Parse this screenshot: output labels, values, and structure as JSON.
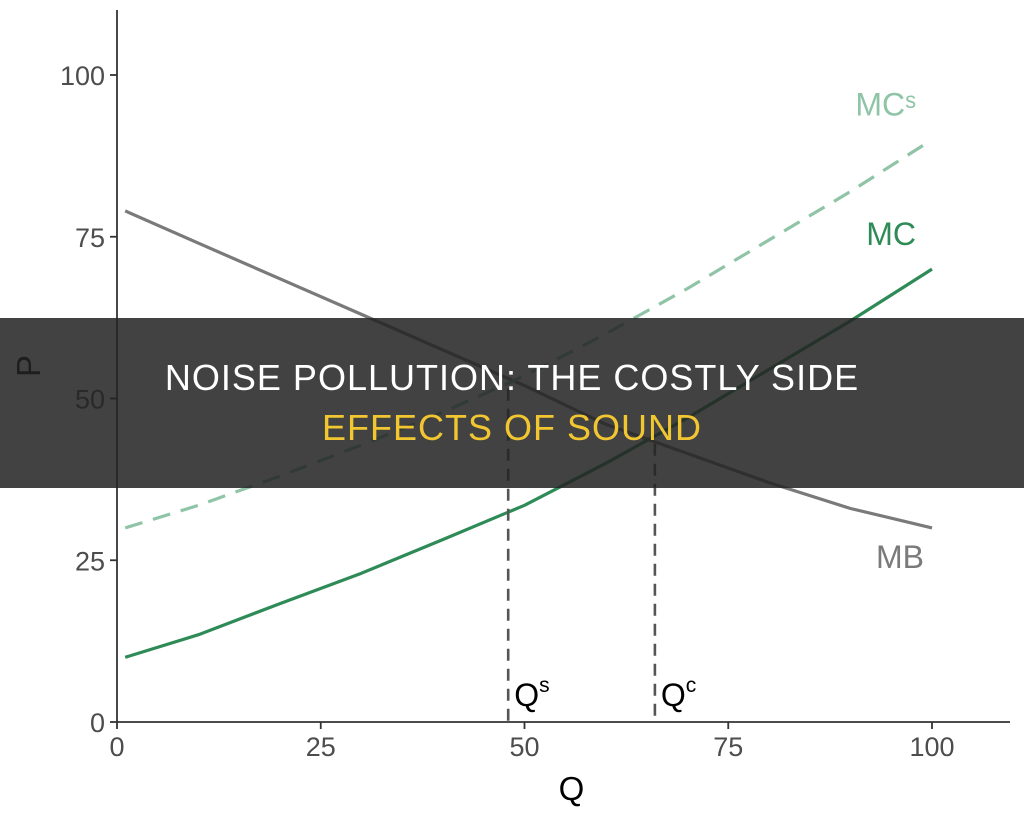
{
  "chart_data": {
    "type": "line",
    "xlabel": "Q",
    "ylabel": "P",
    "xlim": [
      0,
      110
    ],
    "ylim": [
      0,
      110
    ],
    "xticks": [
      0,
      25,
      50,
      75,
      100
    ],
    "yticks": [
      0,
      25,
      50,
      75,
      100
    ],
    "grid": false,
    "series": [
      {
        "name": "MB",
        "color": "#7a7a7a",
        "dash": "solid",
        "x": [
          1,
          10,
          20,
          30,
          40,
          50,
          60,
          70,
          80,
          90,
          100
        ],
        "y": [
          79,
          74,
          68.5,
          63,
          57.5,
          52,
          46,
          41.5,
          37,
          33,
          30
        ]
      },
      {
        "name": "MC",
        "color": "#2e8b57",
        "dash": "solid",
        "x": [
          1,
          10,
          20,
          30,
          40,
          50,
          60,
          70,
          80,
          90,
          100
        ],
        "y": [
          10,
          13.5,
          18.3,
          23,
          28.2,
          33.5,
          40,
          47,
          54.5,
          62,
          70
        ]
      },
      {
        "name": "MCˢ",
        "color": "#8fc4a6",
        "dash": "dashed",
        "x": [
          1,
          10,
          20,
          30,
          40,
          50,
          60,
          70,
          80,
          90,
          100
        ],
        "y": [
          30,
          33.5,
          38,
          42.8,
          47.9,
          53.5,
          60,
          67,
          74.5,
          82,
          90
        ]
      }
    ],
    "vlines": [
      {
        "label_base": "Q",
        "label_sup": "s",
        "x": 48,
        "y_top": 51.5
      },
      {
        "label_base": "Q",
        "label_sup": "c",
        "x": 66,
        "y_top": 43
      }
    ]
  },
  "banner": {
    "line1": "NOISE POLLUTION: THE COSTLY SIDE",
    "line2": "EFFECTS OF SOUND"
  }
}
